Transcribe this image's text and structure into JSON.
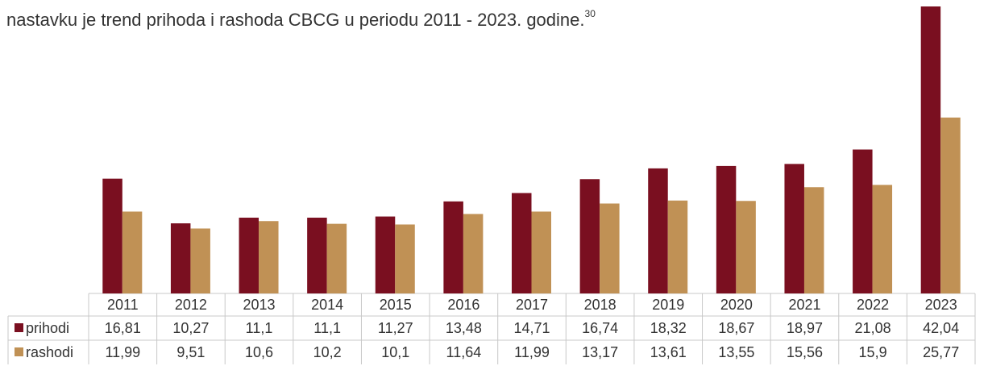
{
  "intro": "nastavku je trend prihoda i rashoda CBCG u periodu 2011 - 2023. godine.",
  "footnote": "30",
  "chart_data": {
    "type": "bar",
    "categories": [
      "2011",
      "2012",
      "2013",
      "2014",
      "2015",
      "2016",
      "2017",
      "2018",
      "2019",
      "2020",
      "2021",
      "2022",
      "2023"
    ],
    "series": [
      {
        "name": "prihodi",
        "color": "#7a0f20",
        "values": [
          16.81,
          10.27,
          11.1,
          11.1,
          11.27,
          13.48,
          14.71,
          16.74,
          18.32,
          18.67,
          18.97,
          21.08,
          42.04
        ],
        "value_labels": [
          "16,81",
          "10,27",
          "11,1",
          "11,1",
          "11,27",
          "13,48",
          "14,71",
          "16,74",
          "18,32",
          "18,67",
          "18,97",
          "21,08",
          "42,04"
        ]
      },
      {
        "name": "rashodi",
        "color": "#c09155",
        "values": [
          11.99,
          9.51,
          10.6,
          10.2,
          10.1,
          11.64,
          11.99,
          13.17,
          13.61,
          13.55,
          15.56,
          15.9,
          25.77
        ],
        "value_labels": [
          "11,99",
          "9,51",
          "10,6",
          "10,2",
          "10,1",
          "11,64",
          "11,99",
          "13,17",
          "13,61",
          "13,55",
          "15,56",
          "15,9",
          "25,77"
        ]
      }
    ]
  }
}
